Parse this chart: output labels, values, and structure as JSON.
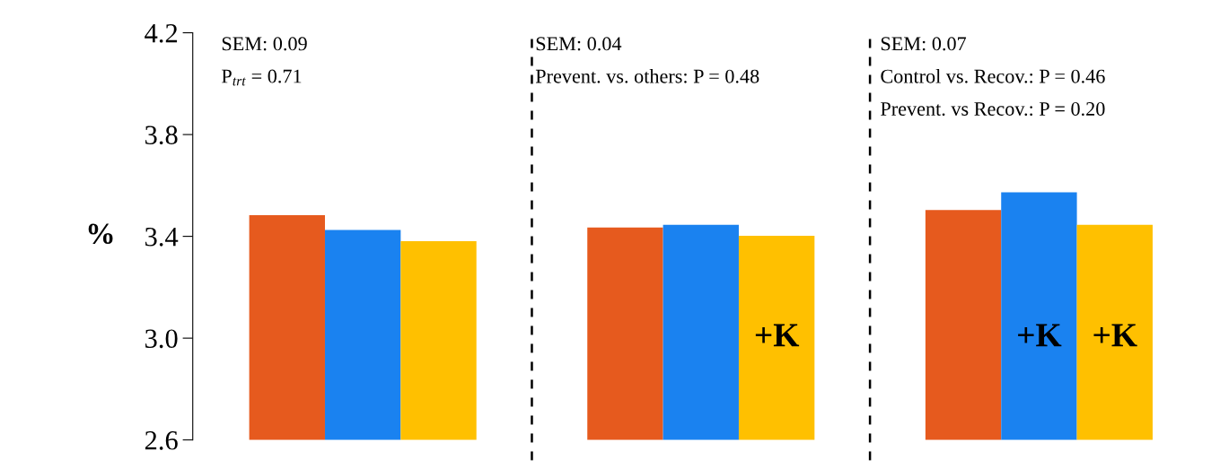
{
  "chart_data": {
    "type": "bar",
    "ylabel": "%",
    "categories": [
      null,
      null,
      null
    ],
    "series": [
      {
        "color": "#e65a1e",
        "values": [
          3.483,
          3.435,
          3.503
        ]
      },
      {
        "color": "#1a82f0",
        "values": [
          3.425,
          3.445,
          3.573
        ],
        "value_labels": [
          null,
          null,
          "+K"
        ]
      },
      {
        "color": "#ffc000",
        "values": [
          3.381,
          3.402,
          3.445
        ],
        "value_labels": [
          null,
          "+K",
          "+K"
        ]
      }
    ],
    "ylim": [
      2.6,
      4.2
    ],
    "yticks": [
      2.6,
      {
        "value": 3.0,
        "label": "3.0"
      },
      3.4,
      3.8,
      4.2
    ],
    "tick_labels": "y",
    "grid": false,
    "annotations": [
      "SEM: 0.09",
      "P$_{trt}$ = 0.71",
      "SEM: 0.04",
      "Prevent. vs. others: P = 0.48",
      "SEM: 0.07",
      "Control vs. Recov.: P = 0.46",
      "Prevent. vs Recov.: P = 0.20"
    ]
  }
}
